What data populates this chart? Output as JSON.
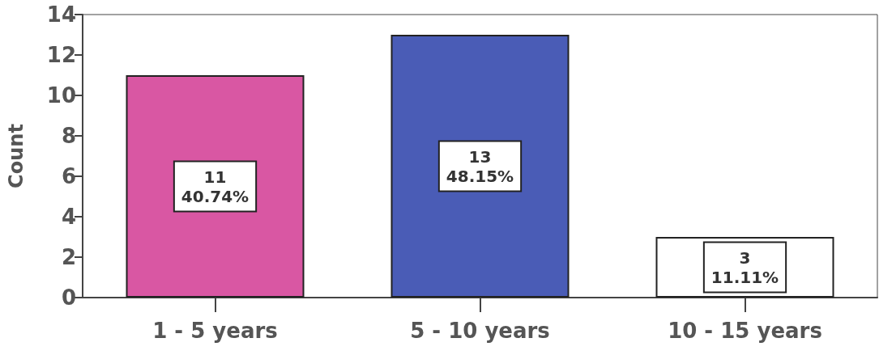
{
  "chart_data": {
    "type": "bar",
    "ylabel": "Count",
    "categories": [
      "1 - 5 years",
      "5 - 10 years",
      "10 - 15 years"
    ],
    "values": [
      11,
      13,
      3
    ],
    "colors": [
      "#d957a3",
      "#4a5cb6",
      "#ffffff"
    ],
    "value_labels": [
      "11\n40.74%",
      "13\n48.15%",
      "3\n11.11%"
    ],
    "ylim": [
      0,
      14
    ],
    "yticks": [
      0,
      2,
      4,
      6,
      8,
      10,
      12,
      14
    ],
    "grid": false
  }
}
